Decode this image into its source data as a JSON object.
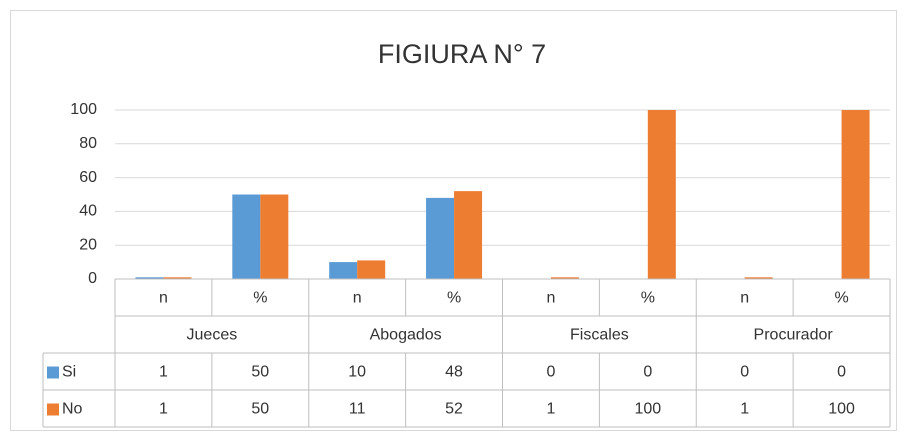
{
  "chart_data": {
    "type": "bar",
    "title": "FIGIURA N° 7",
    "categories": [
      "n",
      "%",
      "n",
      "%",
      "n",
      "%",
      "n",
      "%"
    ],
    "groups": [
      "Jueces",
      "Abogados",
      "Fiscales",
      "Procurador"
    ],
    "series": [
      {
        "name": "Si",
        "color": "#5b9bd5",
        "values": [
          1,
          50,
          10,
          48,
          0,
          0,
          0,
          0
        ]
      },
      {
        "name": "No",
        "color": "#ed7d31",
        "values": [
          1,
          50,
          11,
          52,
          1,
          100,
          1,
          100
        ]
      }
    ],
    "ylim": [
      0,
      100
    ],
    "yticks": [
      0,
      20,
      40,
      60,
      80,
      100
    ],
    "grid": true
  }
}
